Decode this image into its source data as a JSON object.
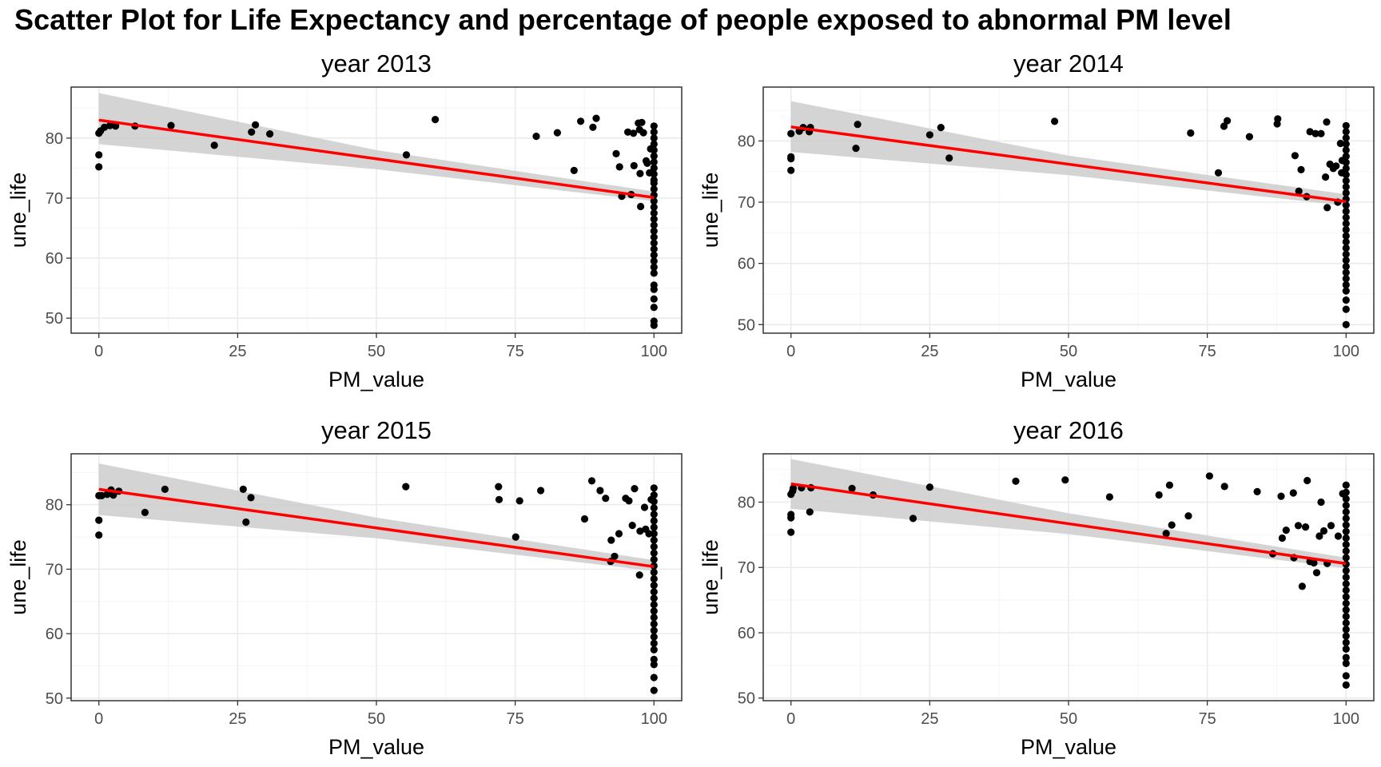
{
  "title": "Scatter Plot for Life Expectancy and percentage of people exposed to abnormal PM level",
  "colors": {
    "points": "#000000",
    "fit_line": "#ff0000",
    "ci_band": "#cccccc",
    "grid_major": "#ebebeb",
    "grid_minor": "#f5f5f5",
    "panel_border": "#333333",
    "tick_text": "#4d4d4d"
  },
  "chart_data": [
    {
      "type": "scatter",
      "title": "year 2013",
      "xlabel": "PM_value",
      "ylabel": "une_life",
      "xlim": [
        -5,
        105
      ],
      "ylim": [
        47.5,
        88.5
      ],
      "xticks": [
        0,
        25,
        50,
        75,
        100
      ],
      "yticks": [
        50,
        60,
        70,
        80
      ],
      "grid": true,
      "fit": {
        "x0": 0,
        "y0": 83.0,
        "x1": 100,
        "y1": 70.1,
        "ci_lo": [
          79.0,
          69.5
        ],
        "ci_hi": [
          87.5,
          71.1
        ],
        "ci_mid": [
          50,
          74.8,
          78.0
        ]
      },
      "points": [
        [
          0,
          75.2
        ],
        [
          0,
          77.2
        ],
        [
          0,
          80.8
        ],
        [
          0.3,
          81.2
        ],
        [
          1,
          81.8
        ],
        [
          2,
          82.1
        ],
        [
          3,
          82.0
        ],
        [
          6.5,
          82.0
        ],
        [
          13,
          82.1
        ],
        [
          20.8,
          78.8
        ],
        [
          27.5,
          81.0
        ],
        [
          28.2,
          82.2
        ],
        [
          30.8,
          80.7
        ],
        [
          55.4,
          77.2
        ],
        [
          60.6,
          83.1
        ],
        [
          78.8,
          80.3
        ],
        [
          82.6,
          80.9
        ],
        [
          85.6,
          74.6
        ],
        [
          86.8,
          82.8
        ],
        [
          89,
          81.8
        ],
        [
          89.6,
          83.3
        ],
        [
          93.2,
          77.4
        ],
        [
          93.8,
          75.2
        ],
        [
          94.2,
          70.3
        ],
        [
          95.3,
          81.0
        ],
        [
          95.9,
          70.6
        ],
        [
          96.4,
          75.4
        ],
        [
          96.3,
          80.8
        ],
        [
          97.2,
          82.5
        ],
        [
          97.4,
          81.4
        ],
        [
          98.1,
          80.9
        ],
        [
          97.6,
          68.6
        ],
        [
          97.5,
          74.1
        ],
        [
          97.8,
          82.6
        ],
        [
          98.8,
          75.8
        ],
        [
          98.6,
          76.2
        ],
        [
          99.4,
          78.2
        ],
        [
          99.2,
          74.2
        ],
        [
          100,
          82.0
        ],
        [
          100,
          81.0
        ],
        [
          100,
          80.0
        ],
        [
          100,
          79.0
        ],
        [
          100,
          78.0
        ],
        [
          100,
          77.0
        ],
        [
          100,
          76.0
        ],
        [
          100,
          75.0
        ],
        [
          100,
          74.0
        ],
        [
          100,
          73.0
        ],
        [
          100,
          72.5
        ],
        [
          100,
          71.5
        ],
        [
          100,
          70.5
        ],
        [
          100,
          69.5
        ],
        [
          100,
          68.5
        ],
        [
          100,
          67.5
        ],
        [
          100,
          66.5
        ],
        [
          100,
          65.5
        ],
        [
          100,
          64.5
        ],
        [
          100,
          63.5
        ],
        [
          100,
          62.5
        ],
        [
          100,
          61.5
        ],
        [
          100,
          60.5
        ],
        [
          100,
          59.5
        ],
        [
          100,
          58.5
        ],
        [
          100,
          57.5
        ],
        [
          100,
          55.5
        ],
        [
          100,
          54.8
        ],
        [
          100,
          53.2
        ],
        [
          100,
          51.8
        ],
        [
          100,
          49.5
        ],
        [
          100,
          48.8
        ]
      ]
    },
    {
      "type": "scatter",
      "title": "year 2014",
      "xlabel": "PM_value",
      "ylabel": "une_life",
      "xlim": [
        -5,
        105
      ],
      "ylim": [
        48.6,
        88.8
      ],
      "xticks": [
        0,
        25,
        50,
        75,
        100
      ],
      "yticks": [
        50,
        60,
        70,
        80
      ],
      "grid": true,
      "fit": {
        "x0": 0,
        "y0": 82.3,
        "x1": 100,
        "y1": 70.1,
        "ci_lo": [
          78.2,
          69.4
        ],
        "ci_hi": [
          86.5,
          71.3
        ],
        "ci_mid": [
          50,
          74.4,
          77.6
        ]
      },
      "points": [
        [
          0,
          75.2
        ],
        [
          0,
          77.1
        ],
        [
          0,
          77.4
        ],
        [
          0,
          81.2
        ],
        [
          1.5,
          81.6
        ],
        [
          2.2,
          82.2
        ],
        [
          3.3,
          81.5
        ],
        [
          3.5,
          82.2
        ],
        [
          11.7,
          78.8
        ],
        [
          12,
          82.7
        ],
        [
          25,
          81.0
        ],
        [
          27,
          82.2
        ],
        [
          28.5,
          77.2
        ],
        [
          47.5,
          83.2
        ],
        [
          72,
          81.3
        ],
        [
          77,
          74.8
        ],
        [
          78,
          82.4
        ],
        [
          78.6,
          83.3
        ],
        [
          82.6,
          80.7
        ],
        [
          87.6,
          82.8
        ],
        [
          87.7,
          83.6
        ],
        [
          90.8,
          77.6
        ],
        [
          91.5,
          71.8
        ],
        [
          91.9,
          75.3
        ],
        [
          92.9,
          70.9
        ],
        [
          93.5,
          81.5
        ],
        [
          94.5,
          81.2
        ],
        [
          95.5,
          81.2
        ],
        [
          96.3,
          74.1
        ],
        [
          96.5,
          83.1
        ],
        [
          96.6,
          69.1
        ],
        [
          97.1,
          76.2
        ],
        [
          97.7,
          75.5
        ],
        [
          98.2,
          75.9
        ],
        [
          98.5,
          70.0
        ],
        [
          99.0,
          79.6
        ],
        [
          99.2,
          74.8
        ],
        [
          99.3,
          76.8
        ],
        [
          100,
          82.5
        ],
        [
          100,
          81.5
        ],
        [
          100,
          80.5
        ],
        [
          100,
          79.5
        ],
        [
          100,
          78.5
        ],
        [
          100,
          77.5
        ],
        [
          100,
          76.5
        ],
        [
          100,
          75.5
        ],
        [
          100,
          74.5
        ],
        [
          100,
          73.5
        ],
        [
          100,
          72.5
        ],
        [
          100,
          71.5
        ],
        [
          100,
          70.5
        ],
        [
          100,
          69.5
        ],
        [
          100,
          68.5
        ],
        [
          100,
          67.5
        ],
        [
          100,
          66.5
        ],
        [
          100,
          65.5
        ],
        [
          100,
          64.5
        ],
        [
          100,
          63.5
        ],
        [
          100,
          62.5
        ],
        [
          100,
          61.5
        ],
        [
          100,
          60.5
        ],
        [
          100,
          59.5
        ],
        [
          100,
          58.5
        ],
        [
          100,
          57.5
        ],
        [
          100,
          56.5
        ],
        [
          100,
          55.5
        ],
        [
          100,
          54.0
        ],
        [
          100,
          52.5
        ],
        [
          100,
          50.0
        ]
      ]
    },
    {
      "type": "scatter",
      "title": "year 2015",
      "xlabel": "PM_value",
      "ylabel": "une_life",
      "xlim": [
        -5,
        105
      ],
      "ylim": [
        49.6,
        87.9
      ],
      "xticks": [
        0,
        25,
        50,
        75,
        100
      ],
      "yticks": [
        50,
        60,
        70,
        80
      ],
      "grid": true,
      "fit": {
        "x0": 0,
        "y0": 82.4,
        "x1": 100,
        "y1": 70.4,
        "ci_lo": [
          78.4,
          69.7
        ],
        "ci_hi": [
          86.4,
          71.4
        ],
        "ci_mid": [
          50,
          74.8,
          78.0
        ]
      },
      "points": [
        [
          0,
          75.3
        ],
        [
          0,
          77.6
        ],
        [
          0,
          81.4
        ],
        [
          0.5,
          81.4
        ],
        [
          1.5,
          81.6
        ],
        [
          2.2,
          82.3
        ],
        [
          2.6,
          81.5
        ],
        [
          3.6,
          82.1
        ],
        [
          8.3,
          78.8
        ],
        [
          11.9,
          82.4
        ],
        [
          26,
          82.4
        ],
        [
          26.5,
          77.3
        ],
        [
          27.4,
          81.1
        ],
        [
          55.3,
          82.8
        ],
        [
          72,
          82.8
        ],
        [
          72.1,
          80.8
        ],
        [
          75.1,
          75.0
        ],
        [
          75.8,
          80.6
        ],
        [
          79.6,
          82.2
        ],
        [
          87.5,
          77.8
        ],
        [
          88.8,
          83.7
        ],
        [
          90.3,
          82.2
        ],
        [
          91.3,
          81.0
        ],
        [
          92.2,
          71.2
        ],
        [
          92.3,
          74.5
        ],
        [
          92.9,
          72.0
        ],
        [
          93.7,
          75.5
        ],
        [
          94.9,
          81.0
        ],
        [
          95.5,
          80.6
        ],
        [
          96.1,
          76.8
        ],
        [
          96.5,
          82.5
        ],
        [
          97.4,
          69.1
        ],
        [
          97.5,
          75.9
        ],
        [
          98.3,
          79.6
        ],
        [
          98.5,
          76.2
        ],
        [
          99.1,
          75.5
        ],
        [
          99.5,
          80.8
        ],
        [
          100,
          82.6
        ],
        [
          100,
          81.5
        ],
        [
          100,
          80.5
        ],
        [
          100,
          79.5
        ],
        [
          100,
          78.5
        ],
        [
          100,
          77.5
        ],
        [
          100,
          76.5
        ],
        [
          100,
          75.5
        ],
        [
          100,
          74.5
        ],
        [
          100,
          73.5
        ],
        [
          100,
          72.5
        ],
        [
          100,
          71.5
        ],
        [
          100,
          70.5
        ],
        [
          100,
          69.5
        ],
        [
          100,
          68.5
        ],
        [
          100,
          67.5
        ],
        [
          100,
          66.5
        ],
        [
          100,
          65.5
        ],
        [
          100,
          64.5
        ],
        [
          100,
          63.5
        ],
        [
          100,
          62.5
        ],
        [
          100,
          61.5
        ],
        [
          100,
          60.5
        ],
        [
          100,
          59.5
        ],
        [
          100,
          58.5
        ],
        [
          100,
          57.5
        ],
        [
          100,
          56.0
        ],
        [
          100,
          55.2
        ],
        [
          100,
          53.2
        ],
        [
          100,
          51.2
        ]
      ]
    },
    {
      "type": "scatter",
      "title": "year 2016",
      "xlabel": "PM_value",
      "ylabel": "une_life",
      "xlim": [
        -5,
        105
      ],
      "ylim": [
        49.6,
        87.4
      ],
      "xticks": [
        0,
        25,
        50,
        75,
        100
      ],
      "yticks": [
        50,
        60,
        70,
        80
      ],
      "grid": true,
      "fit": {
        "x0": 0,
        "y0": 82.8,
        "x1": 100,
        "y1": 70.6,
        "ci_lo": [
          79.0,
          69.9
        ],
        "ci_hi": [
          86.6,
          71.5
        ],
        "ci_mid": [
          50,
          75.1,
          78.3
        ]
      },
      "points": [
        [
          0,
          75.4
        ],
        [
          0,
          77.6
        ],
        [
          0,
          78.1
        ],
        [
          0,
          81.2
        ],
        [
          0.3,
          81.7
        ],
        [
          0.4,
          82.1
        ],
        [
          1.9,
          82.2
        ],
        [
          3.4,
          78.5
        ],
        [
          3.6,
          82.2
        ],
        [
          11,
          82.1
        ],
        [
          14.8,
          81.1
        ],
        [
          22,
          77.5
        ],
        [
          25,
          82.3
        ],
        [
          40.5,
          83.2
        ],
        [
          49.4,
          83.4
        ],
        [
          57.4,
          80.8
        ],
        [
          66.3,
          81.1
        ],
        [
          67.6,
          75.2
        ],
        [
          68.2,
          82.6
        ],
        [
          68.6,
          76.5
        ],
        [
          71.6,
          77.9
        ],
        [
          75.4,
          84.0
        ],
        [
          78.1,
          82.4
        ],
        [
          84,
          81.6
        ],
        [
          86.8,
          72.1
        ],
        [
          88.3,
          80.9
        ],
        [
          88.5,
          74.5
        ],
        [
          89.2,
          75.7
        ],
        [
          90.5,
          81.4
        ],
        [
          90.6,
          71.5
        ],
        [
          91.4,
          76.4
        ],
        [
          92.1,
          67.1
        ],
        [
          92.7,
          76.2
        ],
        [
          93,
          83.3
        ],
        [
          93.5,
          70.9
        ],
        [
          94.2,
          70.7
        ],
        [
          95.2,
          74.8
        ],
        [
          94.7,
          69.2
        ],
        [
          95.5,
          80.0
        ],
        [
          96.0,
          75.6
        ],
        [
          96.6,
          70.6
        ],
        [
          97.3,
          76.4
        ],
        [
          98.6,
          74.8
        ],
        [
          99.4,
          81.3
        ],
        [
          100,
          82.6
        ],
        [
          100,
          81.5
        ],
        [
          100,
          80.5
        ],
        [
          100,
          79.5
        ],
        [
          100,
          78.5
        ],
        [
          100,
          77.5
        ],
        [
          100,
          76.5
        ],
        [
          100,
          75.5
        ],
        [
          100,
          74.5
        ],
        [
          100,
          73.5
        ],
        [
          100,
          72.5
        ],
        [
          100,
          71.5
        ],
        [
          100,
          70.5
        ],
        [
          100,
          69.5
        ],
        [
          100,
          68.5
        ],
        [
          100,
          67.5
        ],
        [
          100,
          66.5
        ],
        [
          100,
          65.5
        ],
        [
          100,
          64.5
        ],
        [
          100,
          63.5
        ],
        [
          100,
          62.5
        ],
        [
          100,
          61.5
        ],
        [
          100,
          60.5
        ],
        [
          100,
          59.5
        ],
        [
          100,
          58.5
        ],
        [
          100,
          57.5
        ],
        [
          100,
          56.2
        ],
        [
          100,
          55.3
        ],
        [
          100,
          53.4
        ],
        [
          100,
          52.0
        ]
      ]
    }
  ]
}
